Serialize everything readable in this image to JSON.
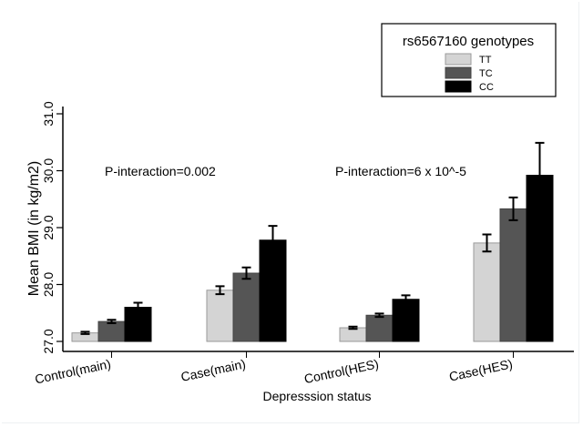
{
  "chart_data": {
    "type": "bar",
    "title": "",
    "xlabel": "Depresssion status",
    "ylabel": "Mean BMI (in kg/m2)",
    "ylim": [
      27.0,
      31.0
    ],
    "yticks": [
      "27.0",
      "28.0",
      "29.0",
      "30.0",
      "31.0"
    ],
    "ytick_values": [
      27.0,
      28.0,
      29.0,
      30.0,
      31.0
    ],
    "categories": [
      "Control(main)",
      "Case(main)",
      "Control(HES)",
      "Case(HES)"
    ],
    "grid": false,
    "legend": {
      "title": "rs6567160 genotypes",
      "placement": "top-right",
      "entries": [
        "TT",
        "TC",
        "CC"
      ]
    },
    "series": [
      {
        "name": "TT",
        "color": "#d4d4d4",
        "values": [
          27.15,
          27.9,
          27.24,
          28.73
        ],
        "errors": [
          0.02,
          0.07,
          0.02,
          0.15
        ]
      },
      {
        "name": "TC",
        "color": "#555555",
        "values": [
          27.35,
          28.2,
          27.46,
          29.33
        ],
        "errors": [
          0.03,
          0.1,
          0.03,
          0.2
        ]
      },
      {
        "name": "CC",
        "color": "#000000",
        "values": [
          27.6,
          28.78,
          27.74,
          29.92
        ],
        "errors": [
          0.08,
          0.25,
          0.07,
          0.57
        ]
      }
    ],
    "annotations": [
      {
        "text": "P-interaction=0.002",
        "group": "main"
      },
      {
        "text": "P-interaction=6 x 10^-5",
        "group": "HES"
      }
    ]
  }
}
